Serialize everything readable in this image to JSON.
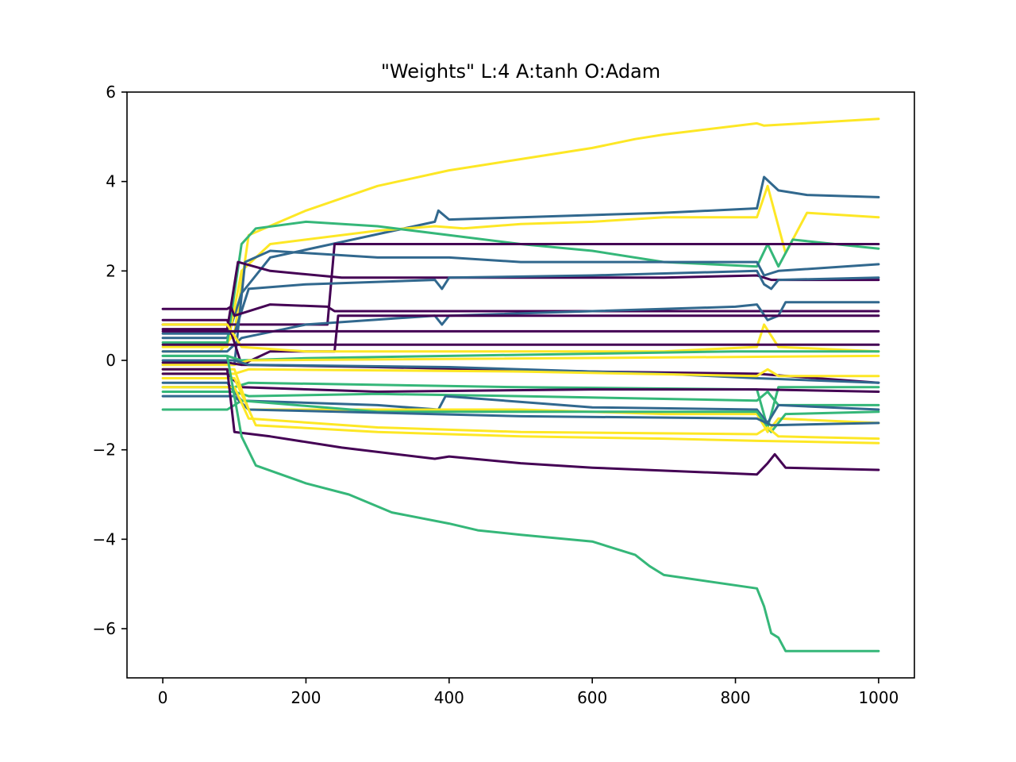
{
  "chart_data": {
    "type": "line",
    "title": "\"Weights\" L:4 A:tanh O:Adam",
    "xlabel": "",
    "ylabel": "",
    "xlim": [
      -50,
      1050
    ],
    "ylim": [
      -7.1,
      6
    ],
    "x_ticks": [
      0,
      200,
      400,
      600,
      800,
      1000
    ],
    "x_tick_labels": [
      "0",
      "200",
      "400",
      "600",
      "800",
      "1000"
    ],
    "y_ticks": [
      -6,
      -4,
      -2,
      0,
      2,
      4,
      6
    ],
    "y_tick_labels": [
      "−6",
      "−4",
      "−2",
      "0",
      "2",
      "4",
      "6"
    ],
    "grid": false,
    "legend": "none",
    "colors": {
      "purple": "#440154",
      "blue": "#31688e",
      "green": "#35b779",
      "yellow": "#fde725",
      "axes": "#000000",
      "background": "#ffffff"
    },
    "series": [
      {
        "color": "yellow",
        "points": [
          [
            0,
            0.2
          ],
          [
            80,
            0.2
          ],
          [
            100,
            0.6
          ],
          [
            120,
            2.8
          ],
          [
            200,
            3.35
          ],
          [
            300,
            3.9
          ],
          [
            400,
            4.25
          ],
          [
            500,
            4.5
          ],
          [
            600,
            4.75
          ],
          [
            660,
            4.95
          ],
          [
            700,
            5.05
          ],
          [
            830,
            5.3
          ],
          [
            840,
            5.25
          ],
          [
            1000,
            5.4
          ]
        ]
      },
      {
        "color": "blue",
        "points": [
          [
            0,
            0.5
          ],
          [
            90,
            0.5
          ],
          [
            110,
            1.5
          ],
          [
            150,
            2.3
          ],
          [
            380,
            3.1
          ],
          [
            385,
            3.35
          ],
          [
            400,
            3.15
          ],
          [
            500,
            3.2
          ],
          [
            700,
            3.3
          ],
          [
            830,
            3.4
          ],
          [
            840,
            4.1
          ],
          [
            860,
            3.8
          ],
          [
            900,
            3.7
          ],
          [
            1000,
            3.65
          ]
        ]
      },
      {
        "color": "yellow",
        "points": [
          [
            0,
            0.3
          ],
          [
            90,
            0.3
          ],
          [
            110,
            2.0
          ],
          [
            150,
            2.6
          ],
          [
            300,
            2.9
          ],
          [
            380,
            3.0
          ],
          [
            420,
            2.95
          ],
          [
            500,
            3.05
          ],
          [
            600,
            3.1
          ],
          [
            700,
            3.2
          ],
          [
            830,
            3.2
          ],
          [
            845,
            3.9
          ],
          [
            870,
            2.4
          ],
          [
            900,
            3.3
          ],
          [
            1000,
            3.2
          ]
        ]
      },
      {
        "color": "green",
        "points": [
          [
            0,
            0.4
          ],
          [
            90,
            0.4
          ],
          [
            110,
            2.6
          ],
          [
            130,
            2.95
          ],
          [
            200,
            3.1
          ],
          [
            300,
            3.0
          ],
          [
            400,
            2.8
          ],
          [
            500,
            2.6
          ],
          [
            600,
            2.45
          ],
          [
            700,
            2.2
          ],
          [
            830,
            2.1
          ],
          [
            845,
            2.6
          ],
          [
            860,
            2.1
          ],
          [
            880,
            2.7
          ],
          [
            1000,
            2.5
          ]
        ]
      },
      {
        "color": "purple",
        "points": [
          [
            0,
            0.8
          ],
          [
            230,
            0.8
          ],
          [
            240,
            2.6
          ],
          [
            300,
            2.6
          ],
          [
            1000,
            2.6
          ]
        ]
      },
      {
        "color": "blue",
        "points": [
          [
            0,
            -0.1
          ],
          [
            100,
            -0.1
          ],
          [
            115,
            2.2
          ],
          [
            150,
            2.45
          ],
          [
            300,
            2.3
          ],
          [
            400,
            2.3
          ],
          [
            500,
            2.2
          ],
          [
            600,
            2.2
          ],
          [
            800,
            2.2
          ],
          [
            830,
            2.2
          ],
          [
            840,
            1.9
          ],
          [
            860,
            2.0
          ],
          [
            1000,
            2.15
          ]
        ]
      },
      {
        "color": "purple",
        "points": [
          [
            0,
            0.7
          ],
          [
            90,
            0.7
          ],
          [
            105,
            2.2
          ],
          [
            150,
            2.0
          ],
          [
            250,
            1.85
          ],
          [
            350,
            1.85
          ],
          [
            500,
            1.85
          ],
          [
            700,
            1.85
          ],
          [
            830,
            1.9
          ],
          [
            850,
            1.8
          ],
          [
            1000,
            1.8
          ]
        ]
      },
      {
        "color": "blue",
        "points": [
          [
            0,
            0.6
          ],
          [
            100,
            0.6
          ],
          [
            120,
            1.6
          ],
          [
            200,
            1.7
          ],
          [
            380,
            1.8
          ],
          [
            390,
            1.6
          ],
          [
            400,
            1.85
          ],
          [
            600,
            1.9
          ],
          [
            830,
            2.0
          ],
          [
            840,
            1.7
          ],
          [
            850,
            1.6
          ],
          [
            860,
            1.8
          ],
          [
            1000,
            1.85
          ]
        ]
      },
      {
        "color": "purple",
        "points": [
          [
            0,
            1.15
          ],
          [
            90,
            1.15
          ],
          [
            95,
            1.2
          ],
          [
            100,
            1.0
          ],
          [
            150,
            1.25
          ],
          [
            230,
            1.2
          ],
          [
            240,
            1.1
          ],
          [
            1000,
            1.1
          ]
        ]
      },
      {
        "color": "blue",
        "points": [
          [
            0,
            0.2
          ],
          [
            90,
            0.2
          ],
          [
            110,
            0.5
          ],
          [
            200,
            0.8
          ],
          [
            380,
            1.0
          ],
          [
            390,
            0.8
          ],
          [
            400,
            1.0
          ],
          [
            600,
            1.1
          ],
          [
            800,
            1.2
          ],
          [
            830,
            1.25
          ],
          [
            845,
            0.9
          ],
          [
            860,
            1.0
          ],
          [
            870,
            1.3
          ],
          [
            1000,
            1.3
          ]
        ]
      },
      {
        "color": "purple",
        "points": [
          [
            0,
            0.9
          ],
          [
            90,
            0.9
          ],
          [
            110,
            -0.1
          ],
          [
            150,
            0.2
          ],
          [
            240,
            0.2
          ],
          [
            245,
            1.0
          ],
          [
            600,
            1.0
          ],
          [
            1000,
            1.0
          ]
        ]
      },
      {
        "color": "yellow",
        "points": [
          [
            0,
            0.8
          ],
          [
            90,
            0.8
          ],
          [
            110,
            0.3
          ],
          [
            200,
            0.2
          ],
          [
            500,
            0.2
          ],
          [
            700,
            0.2
          ],
          [
            830,
            0.3
          ],
          [
            840,
            0.8
          ],
          [
            860,
            0.3
          ],
          [
            1000,
            0.2
          ]
        ]
      },
      {
        "color": "purple",
        "points": [
          [
            0,
            0.65
          ],
          [
            1000,
            0.65
          ]
        ]
      },
      {
        "color": "purple",
        "points": [
          [
            0,
            0.35
          ],
          [
            1000,
            0.35
          ]
        ]
      },
      {
        "color": "green",
        "points": [
          [
            0,
            0.1
          ],
          [
            90,
            0.1
          ],
          [
            110,
            0.0
          ],
          [
            200,
            0.05
          ],
          [
            400,
            0.1
          ],
          [
            600,
            0.15
          ],
          [
            800,
            0.2
          ],
          [
            1000,
            0.2
          ]
        ]
      },
      {
        "color": "yellow",
        "points": [
          [
            0,
            -0.1
          ],
          [
            100,
            -0.1
          ],
          [
            120,
            0.0
          ],
          [
            1000,
            0.1
          ]
        ]
      },
      {
        "color": "purple",
        "points": [
          [
            0,
            -0.05
          ],
          [
            90,
            -0.05
          ],
          [
            110,
            -0.1
          ],
          [
            300,
            -0.15
          ],
          [
            600,
            -0.25
          ],
          [
            830,
            -0.3
          ],
          [
            1000,
            -0.5
          ]
        ]
      },
      {
        "color": "blue",
        "points": [
          [
            0,
            0.0
          ],
          [
            100,
            0.0
          ],
          [
            120,
            -0.1
          ],
          [
            400,
            -0.15
          ],
          [
            700,
            -0.3
          ],
          [
            830,
            -0.4
          ],
          [
            1000,
            -0.5
          ]
        ]
      },
      {
        "color": "yellow",
        "points": [
          [
            0,
            -0.3
          ],
          [
            100,
            -0.3
          ],
          [
            120,
            -0.2
          ],
          [
            500,
            -0.25
          ],
          [
            830,
            -0.35
          ],
          [
            845,
            -0.2
          ],
          [
            860,
            -0.35
          ],
          [
            1000,
            -0.35
          ]
        ]
      },
      {
        "color": "green",
        "points": [
          [
            0,
            -0.6
          ],
          [
            100,
            -0.6
          ],
          [
            120,
            -0.5
          ],
          [
            500,
            -0.6
          ],
          [
            830,
            -0.65
          ],
          [
            845,
            -1.5
          ],
          [
            860,
            -0.6
          ],
          [
            1000,
            -0.6
          ]
        ]
      },
      {
        "color": "purple",
        "points": [
          [
            0,
            -0.3
          ],
          [
            90,
            -0.3
          ],
          [
            110,
            -0.6
          ],
          [
            300,
            -0.7
          ],
          [
            600,
            -0.65
          ],
          [
            830,
            -0.65
          ],
          [
            1000,
            -0.7
          ]
        ]
      },
      {
        "color": "green",
        "points": [
          [
            0,
            -0.7
          ],
          [
            100,
            -0.7
          ],
          [
            120,
            -0.8
          ],
          [
            300,
            -0.75
          ],
          [
            500,
            -0.8
          ],
          [
            830,
            -0.9
          ],
          [
            845,
            -0.7
          ],
          [
            860,
            -1.0
          ],
          [
            1000,
            -1.0
          ]
        ]
      },
      {
        "color": "blue",
        "points": [
          [
            0,
            -0.5
          ],
          [
            90,
            -0.5
          ],
          [
            110,
            -0.9
          ],
          [
            300,
            -1.0
          ],
          [
            385,
            -1.1
          ],
          [
            395,
            -0.8
          ],
          [
            600,
            -1.05
          ],
          [
            830,
            -1.1
          ],
          [
            845,
            -1.4
          ],
          [
            860,
            -1.0
          ],
          [
            1000,
            -1.1
          ]
        ]
      },
      {
        "color": "yellow",
        "points": [
          [
            0,
            -0.2
          ],
          [
            100,
            -0.2
          ],
          [
            120,
            -1.1
          ],
          [
            300,
            -1.1
          ],
          [
            500,
            -1.1
          ],
          [
            700,
            -1.2
          ],
          [
            830,
            -1.2
          ],
          [
            845,
            -1.6
          ],
          [
            860,
            -1.3
          ],
          [
            1000,
            -1.4
          ]
        ]
      },
      {
        "color": "green",
        "points": [
          [
            0,
            -1.1
          ],
          [
            90,
            -1.1
          ],
          [
            110,
            -0.9
          ],
          [
            300,
            -1.15
          ],
          [
            600,
            -1.15
          ],
          [
            830,
            -1.15
          ],
          [
            850,
            -1.6
          ],
          [
            870,
            -1.2
          ],
          [
            1000,
            -1.15
          ]
        ]
      },
      {
        "color": "blue",
        "points": [
          [
            0,
            -0.8
          ],
          [
            100,
            -0.8
          ],
          [
            120,
            -1.1
          ],
          [
            500,
            -1.25
          ],
          [
            830,
            -1.3
          ],
          [
            850,
            -1.45
          ],
          [
            1000,
            -1.4
          ]
        ]
      },
      {
        "color": "yellow",
        "points": [
          [
            0,
            -0.6
          ],
          [
            100,
            -0.6
          ],
          [
            120,
            -1.3
          ],
          [
            300,
            -1.5
          ],
          [
            500,
            -1.6
          ],
          [
            830,
            -1.65
          ],
          [
            845,
            -1.5
          ],
          [
            860,
            -1.7
          ],
          [
            1000,
            -1.75
          ]
        ]
      },
      {
        "color": "yellow",
        "points": [
          [
            0,
            -0.4
          ],
          [
            100,
            -0.4
          ],
          [
            130,
            -1.45
          ],
          [
            300,
            -1.6
          ],
          [
            500,
            -1.7
          ],
          [
            700,
            -1.75
          ],
          [
            830,
            -1.8
          ],
          [
            1000,
            -1.85
          ]
        ]
      },
      {
        "color": "purple",
        "points": [
          [
            0,
            -0.2
          ],
          [
            90,
            -0.2
          ],
          [
            100,
            -1.6
          ],
          [
            150,
            -1.7
          ],
          [
            250,
            -1.95
          ],
          [
            380,
            -2.2
          ],
          [
            400,
            -2.15
          ],
          [
            500,
            -2.3
          ],
          [
            600,
            -2.4
          ],
          [
            830,
            -2.55
          ],
          [
            845,
            -2.3
          ],
          [
            855,
            -2.1
          ],
          [
            870,
            -2.4
          ],
          [
            1000,
            -2.45
          ]
        ]
      },
      {
        "color": "green",
        "points": [
          [
            0,
            0.1
          ],
          [
            90,
            0.1
          ],
          [
            110,
            -1.7
          ],
          [
            130,
            -2.35
          ],
          [
            200,
            -2.75
          ],
          [
            260,
            -3.0
          ],
          [
            320,
            -3.4
          ],
          [
            400,
            -3.65
          ],
          [
            440,
            -3.8
          ],
          [
            500,
            -3.9
          ],
          [
            600,
            -4.05
          ],
          [
            660,
            -4.35
          ],
          [
            680,
            -4.6
          ],
          [
            700,
            -4.8
          ],
          [
            830,
            -5.1
          ],
          [
            840,
            -5.5
          ],
          [
            850,
            -6.1
          ],
          [
            860,
            -6.2
          ],
          [
            870,
            -6.5
          ],
          [
            1000,
            -6.5
          ]
        ]
      }
    ]
  }
}
